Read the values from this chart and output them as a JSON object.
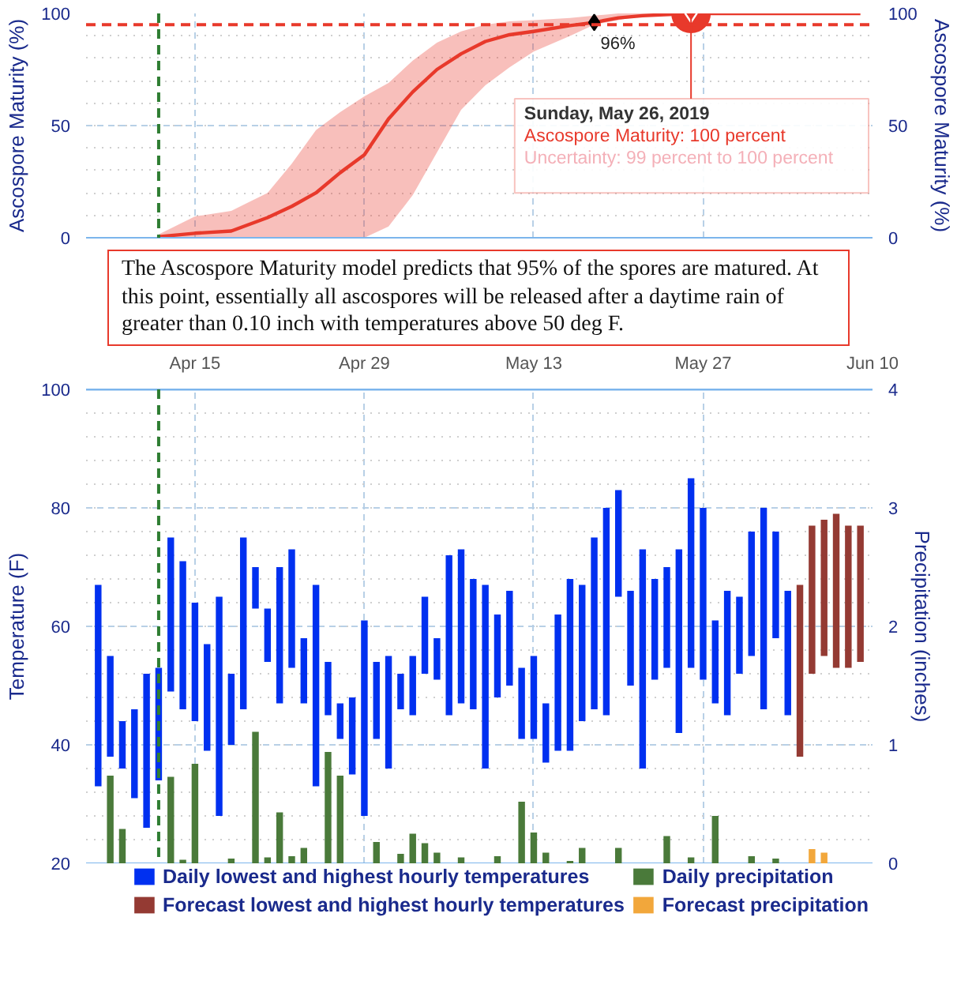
{
  "chart_data": [
    {
      "type": "line",
      "ylabel": "Ascospore Maturity (%)",
      "y2label": "Ascospore Maturity (%)",
      "xlim": [
        "2019-04-06",
        "2019-06-10"
      ],
      "xticks": [
        {
          "value": "2019-04-15",
          "label": null
        },
        {
          "value": "2019-04-29",
          "label": null
        },
        {
          "value": "2019-05-13",
          "label": null
        },
        {
          "value": "2019-05-27",
          "label": null
        }
      ],
      "ylim": [
        0,
        100
      ],
      "yticks": [
        0,
        50,
        100
      ],
      "y2lim": [
        0,
        100
      ],
      "y2ticks": [
        0,
        50,
        100
      ],
      "tick_labels": "y",
      "grid": true,
      "x": [
        "2019-04-12",
        "2019-04-15",
        "2019-04-18",
        "2019-04-21",
        "2019-04-23",
        "2019-04-25",
        "2019-04-27",
        "2019-04-29",
        "2019-05-01",
        "2019-05-03",
        "2019-05-05",
        "2019-05-07",
        "2019-05-09",
        "2019-05-11",
        "2019-05-13",
        "2019-05-16",
        "2019-05-18",
        "2019-05-20",
        "2019-05-22",
        "2019-05-26",
        "2019-06-09"
      ],
      "series": [
        {
          "color": "#e8392b",
          "values": [
            0.5,
            2,
            3,
            9,
            14,
            20,
            29,
            37,
            53,
            65,
            75,
            82,
            87.5,
            90.5,
            92,
            94.6,
            96,
            98,
            99,
            100,
            100
          ],
          "lower": [
            0,
            0,
            0,
            0,
            0,
            0,
            0,
            0,
            5,
            19,
            38,
            57,
            68,
            76,
            83,
            90,
            95,
            97,
            99,
            100,
            100
          ],
          "upper": [
            1.5,
            9.5,
            12,
            20,
            33,
            48,
            56,
            63,
            69,
            79,
            87,
            92,
            95,
            96.5,
            97,
            98,
            99,
            100,
            100,
            100,
            100
          ]
        }
      ],
      "ref_lines": [
        {
          "axis": "x",
          "value": "2019-04-12",
          "color": "#2e7d32",
          "line_style": "dashed"
        },
        {
          "axis": "y",
          "value": 95,
          "color": "#e8392b",
          "line_style": "dashed"
        }
      ],
      "annotations": [
        "The Ascospore Maturity model predicts that 95% of the spores are matured. At this point, essentially all ascospores will be released after a daytime rain of greater than 0.10 inch with temperatures above 50 deg F.",
        {
          "text": "96%",
          "x": "2019-05-18",
          "y": 96
        },
        {
          "text": "Sunday, May 26, 2019",
          "x": "2019-05-26",
          "y": 100
        },
        "Ascospore Maturity: 100 percent",
        "Uncertainty: 99 percent to 100 percent"
      ]
    },
    {
      "type": "bar",
      "ylabel": "Temperature (F)",
      "y2label": "Precipitation (inches)",
      "xlim": [
        "2019-04-06",
        "2019-06-10"
      ],
      "xticks": [
        {
          "value": "2019-04-15",
          "label": "Apr 15"
        },
        {
          "value": "2019-04-29",
          "label": "Apr 29"
        },
        {
          "value": "2019-05-13",
          "label": "May 13"
        },
        {
          "value": "2019-05-27",
          "label": "May 27"
        },
        {
          "value": "2019-06-10",
          "label": "Jun 10"
        }
      ],
      "ylim": [
        20,
        100
      ],
      "yticks": [
        20,
        40,
        60,
        80,
        100
      ],
      "y2lim": [
        0,
        4
      ],
      "y2ticks": [
        0,
        1,
        2,
        3,
        4
      ],
      "grid": true,
      "legend": "bottom",
      "series": [
        {
          "name": "Daily lowest and highest hourly temperatures",
          "color": "#0030f0",
          "x": [
            "2019-04-07",
            "2019-04-08",
            "2019-04-09",
            "2019-04-10",
            "2019-04-11",
            "2019-04-12",
            "2019-04-13",
            "2019-04-14",
            "2019-04-15",
            "2019-04-16",
            "2019-04-17",
            "2019-04-18",
            "2019-04-19",
            "2019-04-20",
            "2019-04-21",
            "2019-04-22",
            "2019-04-23",
            "2019-04-24",
            "2019-04-25",
            "2019-04-26",
            "2019-04-27",
            "2019-04-28",
            "2019-04-29",
            "2019-04-30",
            "2019-05-01",
            "2019-05-02",
            "2019-05-03",
            "2019-05-04",
            "2019-05-05",
            "2019-05-06",
            "2019-05-07",
            "2019-05-08",
            "2019-05-09",
            "2019-05-10",
            "2019-05-11",
            "2019-05-12",
            "2019-05-13",
            "2019-05-14",
            "2019-05-15",
            "2019-05-16",
            "2019-05-17",
            "2019-05-18",
            "2019-05-19",
            "2019-05-20",
            "2019-05-21",
            "2019-05-22",
            "2019-05-23",
            "2019-05-24",
            "2019-05-25",
            "2019-05-26",
            "2019-05-27",
            "2019-05-28",
            "2019-05-29",
            "2019-05-30",
            "2019-05-31",
            "2019-06-01",
            "2019-06-02",
            "2019-06-03"
          ],
          "base": [
            33,
            38,
            36,
            31,
            26,
            34,
            49,
            46,
            44,
            39,
            28,
            40,
            46,
            63,
            54,
            47,
            53,
            47,
            33,
            45,
            41,
            35,
            28,
            41,
            36,
            46,
            45,
            52,
            51,
            45,
            47,
            46,
            36,
            48,
            50,
            41,
            41,
            37,
            39,
            39,
            44,
            46,
            45,
            65,
            50,
            36,
            51,
            53,
            42,
            53,
            51,
            47,
            45,
            52,
            55,
            46,
            58,
            45
          ],
          "values": [
            34,
            17,
            8,
            15,
            26,
            19,
            26,
            25,
            20,
            18,
            37,
            12,
            29,
            7,
            9,
            23,
            20,
            11,
            34,
            9,
            6,
            13,
            33,
            13,
            19,
            6,
            10,
            13,
            7,
            27,
            26,
            22,
            31,
            14,
            16,
            12,
            14,
            10,
            23,
            29,
            23,
            29,
            35,
            18,
            16,
            37,
            17,
            17,
            31,
            32,
            29,
            14,
            21,
            13,
            21,
            34,
            18,
            21
          ]
        },
        {
          "name": "Daily precipitation",
          "color": "#4a7a3a",
          "axis": "y2",
          "x": [
            "2019-04-08",
            "2019-04-09",
            "2019-04-13",
            "2019-04-14",
            "2019-04-15",
            "2019-04-18",
            "2019-04-20",
            "2019-04-21",
            "2019-04-22",
            "2019-04-23",
            "2019-04-24",
            "2019-04-26",
            "2019-04-27",
            "2019-04-30",
            "2019-05-02",
            "2019-05-03",
            "2019-05-04",
            "2019-05-05",
            "2019-05-07",
            "2019-05-10",
            "2019-05-12",
            "2019-05-13",
            "2019-05-14",
            "2019-05-16",
            "2019-05-17",
            "2019-05-20",
            "2019-05-24",
            "2019-05-26",
            "2019-05-28",
            "2019-05-31",
            "2019-06-02"
          ],
          "values": [
            0.74,
            0.29,
            0.73,
            0.03,
            0.84,
            0.04,
            1.11,
            0.05,
            0.43,
            0.06,
            0.13,
            0.94,
            0.74,
            0.18,
            0.08,
            0.25,
            0.17,
            0.09,
            0.05,
            0.06,
            0.52,
            0.26,
            0.09,
            0.02,
            0.13,
            0.13,
            0.23,
            0.05,
            0.4,
            0.06,
            0.04
          ]
        },
        {
          "name": "Forecast lowest and highest hourly temperatures",
          "color": "#943a33",
          "x": [
            "2019-06-04",
            "2019-06-05",
            "2019-06-06",
            "2019-06-07",
            "2019-06-08",
            "2019-06-09"
          ],
          "base": [
            38,
            52,
            55,
            53,
            53,
            54
          ],
          "values": [
            29,
            25,
            23,
            26,
            24,
            23
          ]
        },
        {
          "name": "Forecast precipitation",
          "color": "#f2a73b",
          "axis": "y2",
          "x": [
            "2019-06-05",
            "2019-06-06"
          ],
          "values": [
            0.12,
            0.09
          ]
        }
      ],
      "ref_lines": [
        {
          "axis": "x",
          "value": "2019-04-12",
          "color": "#2e7d32",
          "line_style": "dashed"
        }
      ]
    }
  ]
}
